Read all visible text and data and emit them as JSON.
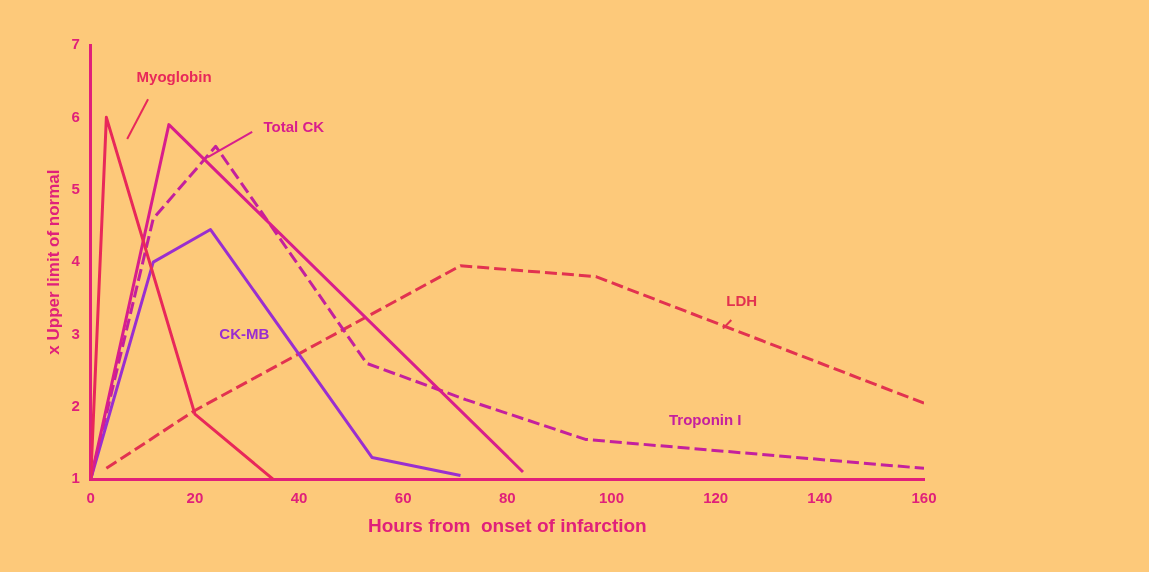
{
  "chart_data": {
    "type": "line",
    "xlabel": "Hours from  onset of infarction",
    "ylabel": "x Upper limit of normal",
    "xlim": [
      0,
      160
    ],
    "xticks": [
      0,
      20,
      40,
      60,
      80,
      100,
      120,
      140,
      160
    ],
    "ylim": [
      1,
      7
    ],
    "yticks": [
      1,
      2,
      3,
      4,
      5,
      6,
      7
    ],
    "grid": false,
    "legend": false,
    "marker": "none",
    "series": [
      {
        "name": "Myoglobin",
        "color": "#e8285a",
        "line_style": "solid",
        "x": [
          0,
          3,
          20,
          35
        ],
        "values": [
          1,
          6,
          1.9,
          1
        ]
      },
      {
        "name": "Total CK",
        "color": "#d81e8c",
        "line_style": "solid",
        "x": [
          0,
          15,
          83
        ],
        "values": [
          1,
          5.9,
          1.1
        ]
      },
      {
        "name": "CK-MB",
        "color": "#9a2ed0",
        "line_style": "solid",
        "x": [
          0,
          12,
          23,
          54,
          71
        ],
        "values": [
          1,
          4,
          4.45,
          1.3,
          1.05
        ]
      },
      {
        "name": "Troponin I",
        "color": "#c4209e",
        "line_style": "dashed",
        "x": [
          0,
          12,
          24,
          53,
          72,
          95,
          160
        ],
        "values": [
          1,
          4.6,
          5.6,
          2.6,
          2.1,
          1.55,
          1.15
        ]
      },
      {
        "name": "LDH",
        "color": "#e23250",
        "line_style": "dashed",
        "x": [
          3,
          20,
          71,
          97,
          160
        ],
        "values": [
          1.15,
          1.95,
          3.95,
          3.8,
          2.05
        ]
      }
    ]
  }
}
